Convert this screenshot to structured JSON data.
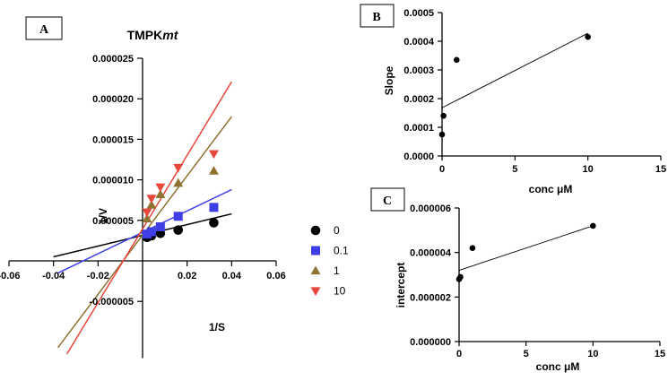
{
  "chart_data": [
    {
      "panel": "A",
      "type": "scatter",
      "title_main": "TMPK",
      "title_italic": "mt",
      "xlabel": "1/S",
      "ylabel": "1/V",
      "xlim": [
        -0.06,
        0.06
      ],
      "ylim": [
        -1.2e-05,
        2.5e-05
      ],
      "x_ticks": [
        -0.06,
        -0.04,
        -0.02,
        0.02,
        0.04,
        0.06
      ],
      "x_tick_labels": [
        "-0.06",
        "-0.04",
        "-0.02",
        "0.02",
        "0.04",
        "0.06"
      ],
      "y_ticks": [
        -5e-06,
        5e-06,
        1e-05,
        1.5e-05,
        2e-05,
        2.5e-05
      ],
      "y_tick_labels": [
        "-0.000005",
        "0.000005",
        "0.000010",
        "0.000015",
        "0.000020",
        "0.000025"
      ],
      "series": [
        {
          "name": "0",
          "color": "#000000",
          "marker": "circle",
          "x": [
            0.002,
            0.004,
            0.008,
            0.016,
            0.032
          ],
          "y": [
            2.9e-06,
            3.1e-06,
            3.4e-06,
            3.8e-06,
            4.7e-06
          ],
          "line_x": [
            -0.04,
            0.04
          ],
          "line_y": [
            5e-07,
            5.8e-06
          ]
        },
        {
          "name": "0.1",
          "color": "#3f3fe6",
          "marker": "square",
          "x": [
            0.002,
            0.004,
            0.008,
            0.016,
            0.032
          ],
          "y": [
            3.3e-06,
            3.6e-06,
            4.2e-06,
            5.5e-06,
            6.6e-06
          ],
          "line_x": [
            -0.038,
            0.04
          ],
          "line_y": [
            -1.5e-06,
            8.8e-06
          ]
        },
        {
          "name": "1",
          "color": "#8e7332",
          "marker": "triangle-up",
          "x": [
            0.002,
            0.004,
            0.008,
            0.016,
            0.032
          ],
          "y": [
            5.2e-06,
            6.9e-06,
            8.2e-06,
            9.6e-06,
            1.11e-05
          ],
          "line_x": [
            -0.038,
            0.04
          ],
          "line_y": [
            -1.07e-05,
            1.78e-05
          ]
        },
        {
          "name": "10",
          "color": "#e8473c",
          "marker": "triangle-down",
          "x": [
            0.002,
            0.004,
            0.008,
            0.016,
            0.032
          ],
          "y": [
            6e-06,
            7.7e-06,
            9.1e-06,
            1.15e-05,
            1.32e-05
          ],
          "line_x": [
            -0.034,
            0.04
          ],
          "line_y": [
            -1.15e-05,
            2.21e-05
          ]
        }
      ]
    },
    {
      "panel": "B",
      "type": "scatter",
      "xlabel": "conc μM",
      "ylabel": "Slope",
      "xlim": [
        0,
        15
      ],
      "ylim": [
        0,
        0.0005
      ],
      "x_ticks": [
        0,
        5,
        10,
        15
      ],
      "x_tick_labels": [
        "0",
        "5",
        "10",
        "15"
      ],
      "y_ticks": [
        0,
        0.0001,
        0.0002,
        0.0003,
        0.0004,
        0.0005
      ],
      "y_tick_labels": [
        "0.0000",
        "0.0001",
        "0.0002",
        "0.0003",
        "0.0004",
        "0.0005"
      ],
      "points": {
        "x": [
          0,
          0.1,
          1,
          10
        ],
        "y": [
          7.5e-05,
          0.00014,
          0.000335,
          0.000415
        ]
      },
      "fit_line": {
        "x": [
          0,
          10
        ],
        "y": [
          0.000168,
          0.000428
        ]
      }
    },
    {
      "panel": "C",
      "type": "scatter",
      "xlabel": "conc μM",
      "ylabel": "intercept",
      "xlim": [
        0,
        15
      ],
      "ylim": [
        0,
        6e-06
      ],
      "x_ticks": [
        0,
        5,
        10,
        15
      ],
      "x_tick_labels": [
        "0",
        "5",
        "10",
        "15"
      ],
      "y_ticks": [
        0,
        2e-06,
        4e-06,
        6e-06
      ],
      "y_tick_labels": [
        "0.000000",
        "0.000002",
        "0.000004",
        "0.000006"
      ],
      "points": {
        "x": [
          0,
          0.1,
          1,
          10
        ],
        "y": [
          2.8e-06,
          2.9e-06,
          4.2e-06,
          5.2e-06
        ]
      },
      "fit_line": {
        "x": [
          0,
          10
        ],
        "y": [
          3.2e-06,
          5.2e-06
        ]
      }
    }
  ]
}
